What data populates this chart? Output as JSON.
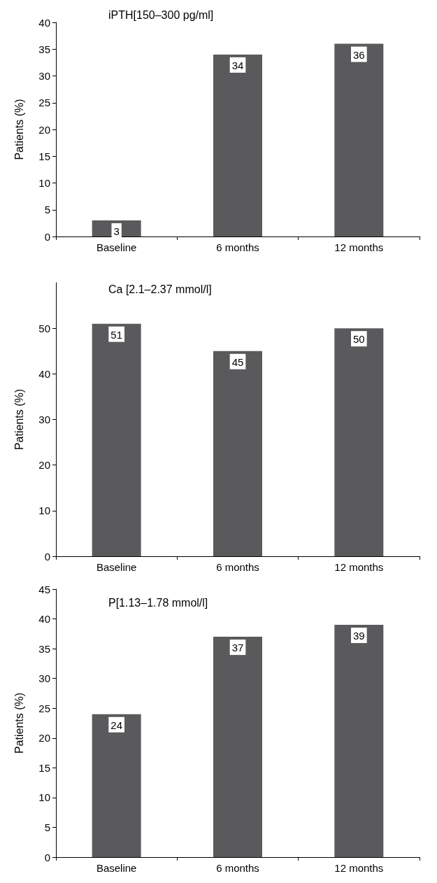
{
  "chart_data": [
    {
      "type": "bar",
      "title": "iPTH[150–300 pg/ml]",
      "ylabel": "Patients (%)",
      "categories": [
        "Baseline",
        "6 months",
        "12 months"
      ],
      "values": [
        3,
        34,
        36
      ],
      "color": "#5a5a5c",
      "ylim": [
        0,
        40
      ],
      "yticks": [
        0,
        5,
        10,
        15,
        20,
        25,
        30,
        35,
        40
      ],
      "data_labels": true,
      "grid": false
    },
    {
      "type": "bar",
      "title": "Ca [2.1–2.37 mmol/l]",
      "ylabel": "Patients (%)",
      "categories": [
        "Baseline",
        "6 months",
        "12 months"
      ],
      "values": [
        51,
        45,
        50
      ],
      "color": "#5a5a5c",
      "ylim": [
        0,
        60
      ],
      "yticks": [
        0,
        10,
        20,
        30,
        40,
        50
      ],
      "data_labels": true,
      "grid": false
    },
    {
      "type": "bar",
      "title": "P[1.13–1.78 mmol/l]",
      "ylabel": "Patients (%)",
      "categories": [
        "Baseline",
        "6 months",
        "12 months"
      ],
      "values": [
        24,
        37,
        39
      ],
      "color": "#5a5a5c",
      "ylim": [
        0,
        45
      ],
      "yticks": [
        0,
        5,
        10,
        15,
        20,
        25,
        30,
        35,
        40,
        45
      ],
      "data_labels": true,
      "grid": false
    }
  ]
}
